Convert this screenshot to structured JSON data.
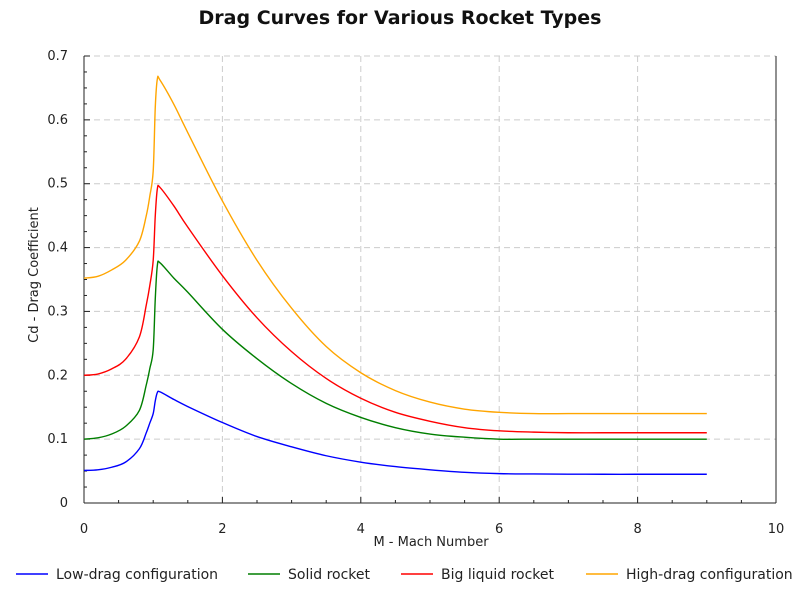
{
  "chart_data": {
    "type": "line",
    "title": "Drag Curves for Various Rocket Types",
    "xlabel": "M - Mach Number",
    "ylabel": "Cd - Drag Coefficient",
    "xlim": [
      0,
      10
    ],
    "ylim": [
      0,
      0.7
    ],
    "xticks": [
      "0",
      "2",
      "4",
      "6",
      "8",
      "10"
    ],
    "yticks": [
      "0",
      "0.1",
      "0.2",
      "0.3",
      "0.4",
      "0.5",
      "0.6",
      "0.7"
    ],
    "grid": true,
    "legend_position": "bottom",
    "series": [
      {
        "name": "Low-drag configuration",
        "color": "#0000ff",
        "x": [
          0,
          0.2,
          0.4,
          0.6,
          0.8,
          0.9,
          0.95,
          1.0,
          1.03,
          1.06,
          1.1,
          1.3,
          1.5,
          2.0,
          2.5,
          3.0,
          3.5,
          4.0,
          4.5,
          5.0,
          5.5,
          6.0,
          6.5,
          7.0,
          7.5,
          8.0,
          8.5,
          9.0
        ],
        "y": [
          0.051,
          0.052,
          0.056,
          0.064,
          0.085,
          0.11,
          0.125,
          0.14,
          0.16,
          0.173,
          0.174,
          0.162,
          0.151,
          0.126,
          0.104,
          0.088,
          0.074,
          0.064,
          0.057,
          0.052,
          0.048,
          0.046,
          0.0455,
          0.0452,
          0.045,
          0.045,
          0.045,
          0.045
        ]
      },
      {
        "name": "Solid rocket",
        "color": "#007f00",
        "x": [
          0,
          0.2,
          0.4,
          0.6,
          0.8,
          0.9,
          0.95,
          1.0,
          1.03,
          1.06,
          1.1,
          1.3,
          1.5,
          2.0,
          2.5,
          3.0,
          3.5,
          4.0,
          4.5,
          5.0,
          5.5,
          6.0,
          6.5,
          7.0,
          7.5,
          8.0,
          8.5,
          9.0
        ],
        "y": [
          0.1,
          0.102,
          0.108,
          0.12,
          0.145,
          0.185,
          0.21,
          0.24,
          0.32,
          0.372,
          0.376,
          0.352,
          0.33,
          0.272,
          0.226,
          0.187,
          0.156,
          0.134,
          0.118,
          0.108,
          0.103,
          0.1,
          0.1,
          0.1,
          0.1,
          0.1,
          0.1,
          0.1
        ]
      },
      {
        "name": "Big liquid rocket",
        "color": "#ff0000",
        "x": [
          0,
          0.2,
          0.4,
          0.6,
          0.8,
          0.9,
          0.95,
          1.0,
          1.03,
          1.06,
          1.1,
          1.3,
          1.5,
          2.0,
          2.5,
          3.0,
          3.5,
          4.0,
          4.5,
          5.0,
          5.5,
          6.0,
          6.5,
          7.0,
          7.5,
          8.0,
          8.5,
          9.0
        ],
        "y": [
          0.2,
          0.202,
          0.21,
          0.225,
          0.26,
          0.31,
          0.34,
          0.38,
          0.45,
          0.492,
          0.494,
          0.465,
          0.432,
          0.356,
          0.29,
          0.237,
          0.195,
          0.164,
          0.142,
          0.128,
          0.118,
          0.113,
          0.111,
          0.11,
          0.11,
          0.11,
          0.11,
          0.11
        ]
      },
      {
        "name": "High-drag configuration",
        "color": "#ffa500",
        "x": [
          0,
          0.2,
          0.4,
          0.6,
          0.8,
          0.9,
          0.95,
          1.0,
          1.03,
          1.06,
          1.1,
          1.3,
          1.5,
          2.0,
          2.5,
          3.0,
          3.5,
          4.0,
          4.5,
          5.0,
          5.5,
          6.0,
          6.5,
          7.0,
          7.5,
          8.0,
          8.5,
          9.0
        ],
        "y": [
          0.352,
          0.355,
          0.365,
          0.38,
          0.41,
          0.45,
          0.48,
          0.52,
          0.62,
          0.664,
          0.662,
          0.624,
          0.58,
          0.473,
          0.38,
          0.305,
          0.245,
          0.204,
          0.176,
          0.158,
          0.147,
          0.142,
          0.14,
          0.14,
          0.14,
          0.14,
          0.14,
          0.14
        ]
      }
    ]
  }
}
